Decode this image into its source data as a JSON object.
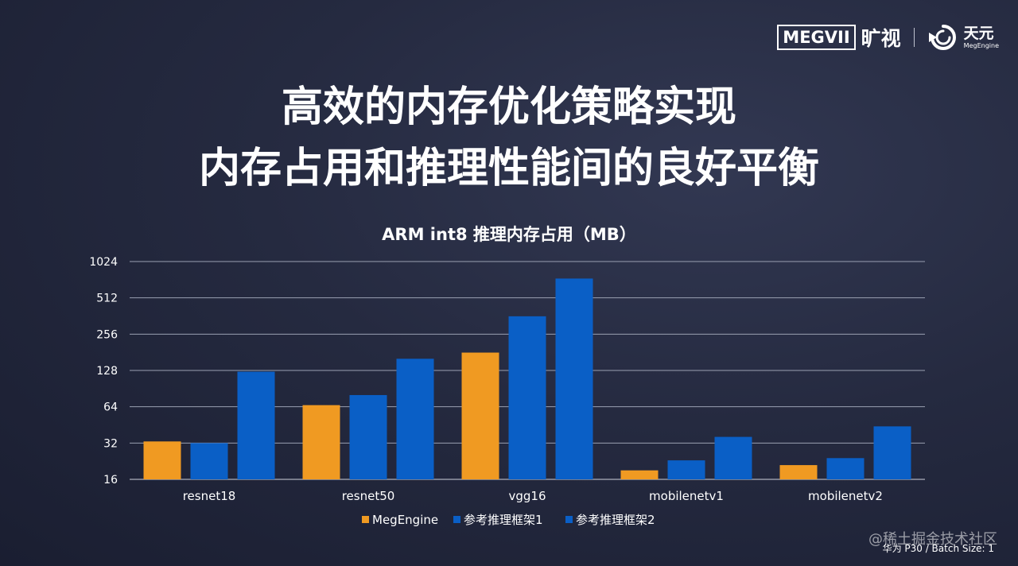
{
  "logos": {
    "megvii": "MEGVII",
    "megvii_cn": "旷视",
    "tianyuan_cn": "天元",
    "tianyuan_en": "MegEngine"
  },
  "title": {
    "line1": "高效的内存优化策略实现",
    "line2": "内存占用和推理性能间的良好平衡"
  },
  "chart_data": {
    "type": "bar",
    "title": "ARM int8 推理内存占用（MB）",
    "categories": [
      "resnet18",
      "resnet50",
      "vgg16",
      "mobilenetv1",
      "mobilenetv2"
    ],
    "series": [
      {
        "name": "MegEngine",
        "color": "#f09a22",
        "values": [
          33,
          66,
          180,
          19,
          21
        ]
      },
      {
        "name": "参考推理框架1",
        "color": "#0a5fc6",
        "values": [
          32,
          80,
          360,
          23,
          24
        ]
      },
      {
        "name": "参考推理框架2",
        "color": "#0a5fc6",
        "values": [
          125,
          160,
          740,
          36,
          44
        ]
      }
    ],
    "y_scale": "log2",
    "ylim": [
      16,
      1024
    ],
    "yticks": [
      "16",
      "32",
      "64",
      "128",
      "256",
      "512",
      "1024"
    ],
    "grid": true,
    "legend_position": "bottom"
  },
  "footnote": "华为 P30 / Batch Size: 1",
  "watermark": "@稀土掘金技术社区"
}
